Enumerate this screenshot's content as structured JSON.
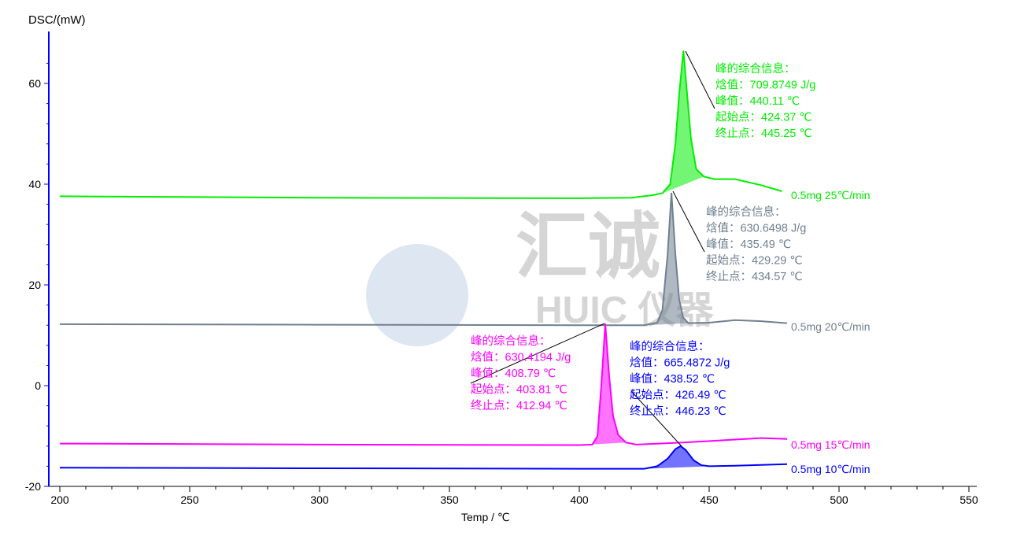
{
  "chart_data": {
    "type": "line",
    "ylabel": "DSC/(mW)",
    "xlabel": "Temp / ℃",
    "xlim": [
      196,
      553
    ],
    "ylim": [
      -20,
      67
    ],
    "xticks": [
      200,
      250,
      300,
      350,
      400,
      450,
      500,
      550
    ],
    "yticks": [
      -20,
      0,
      20,
      40,
      60
    ],
    "grid": false,
    "watermark": "汇诚 HUIC 仪器",
    "series": [
      {
        "name": "0.5mg 25℃/min",
        "color": "#00ee00",
        "x": [
          200,
          300,
          400,
          420,
          428,
          432,
          435,
          437,
          438.5,
          440.1,
          441.5,
          443,
          445,
          448,
          452,
          460,
          470,
          478
        ],
        "y": [
          37.6,
          37.3,
          37.2,
          37.3,
          37.8,
          38.2,
          40,
          48,
          58,
          66.5,
          58,
          49,
          43,
          41.5,
          41,
          41,
          39.8,
          38.6
        ],
        "peak": {
          "title": "峰的综合信息：",
          "enthalpy_label": "焓值：",
          "enthalpy": "709.8749 J/g",
          "peak_label": "峰值：",
          "peak": "440.11 ℃",
          "onset_label": "起始点：",
          "onset": "424.37 ℃",
          "end_label": "终止点：",
          "end": "445.25 ℃"
        }
      },
      {
        "name": "0.5mg 20℃/min",
        "color": "#708090",
        "x": [
          200,
          300,
          400,
          425,
          430,
          432,
          434,
          435.5,
          437,
          438.5,
          440,
          442,
          450,
          460,
          470,
          480
        ],
        "y": [
          12.2,
          12.1,
          12.0,
          12.0,
          12.5,
          15,
          26,
          38.3,
          26,
          17,
          13.5,
          12.4,
          12.5,
          13,
          12.8,
          12.4
        ],
        "peak": {
          "title": "峰的综合信息：",
          "enthalpy_label": "焓值：",
          "enthalpy": "630.6498 J/g",
          "peak_label": "峰值：",
          "peak": "435.49 ℃",
          "onset_label": "起始点：",
          "onset": "429.29 ℃",
          "end_label": "终止点：",
          "end": "434.57 ℃"
        }
      },
      {
        "name": "0.5mg 15℃/min",
        "color": "#ff00ff",
        "x": [
          200,
          300,
          400,
          405,
          407,
          408.5,
          410,
          411.5,
          413,
          415,
          418,
          422,
          440,
          460,
          470,
          480
        ],
        "y": [
          -11.5,
          -11.7,
          -11.8,
          -11.7,
          -10,
          0,
          12.3,
          2,
          -6,
          -9.8,
          -11.3,
          -11.7,
          -11.3,
          -10.7,
          -10.4,
          -10.6
        ],
        "peak": {
          "title": "峰的综合信息：",
          "enthalpy_label": "焓值：",
          "enthalpy": "630.4194 J/g",
          "peak_label": "峰值：",
          "peak": "408.79 ℃",
          "onset_label": "起始点：",
          "onset": "403.81 ℃",
          "end_label": "终止点：",
          "end": "412.94 ℃"
        }
      },
      {
        "name": "0.5mg 10℃/min",
        "color": "#0000ff",
        "x": [
          200,
          300,
          400,
          425,
          430,
          434,
          437,
          439,
          441,
          444,
          447,
          450,
          460,
          480
        ],
        "y": [
          -16.3,
          -16.4,
          -16.5,
          -16.5,
          -16.0,
          -14.5,
          -12.6,
          -12.0,
          -12.8,
          -14.8,
          -15.8,
          -16.0,
          -15.9,
          -15.6
        ],
        "peak": {
          "title": "峰的综合信息：",
          "enthalpy_label": "焓值：",
          "enthalpy": "665.4872 J/g",
          "peak_label": "峰值：",
          "peak": "438.52 ℃",
          "onset_label": "起始点：",
          "onset": "426.49 ℃",
          "end_label": "终止点：",
          "end": "446.23 ℃"
        }
      }
    ]
  }
}
